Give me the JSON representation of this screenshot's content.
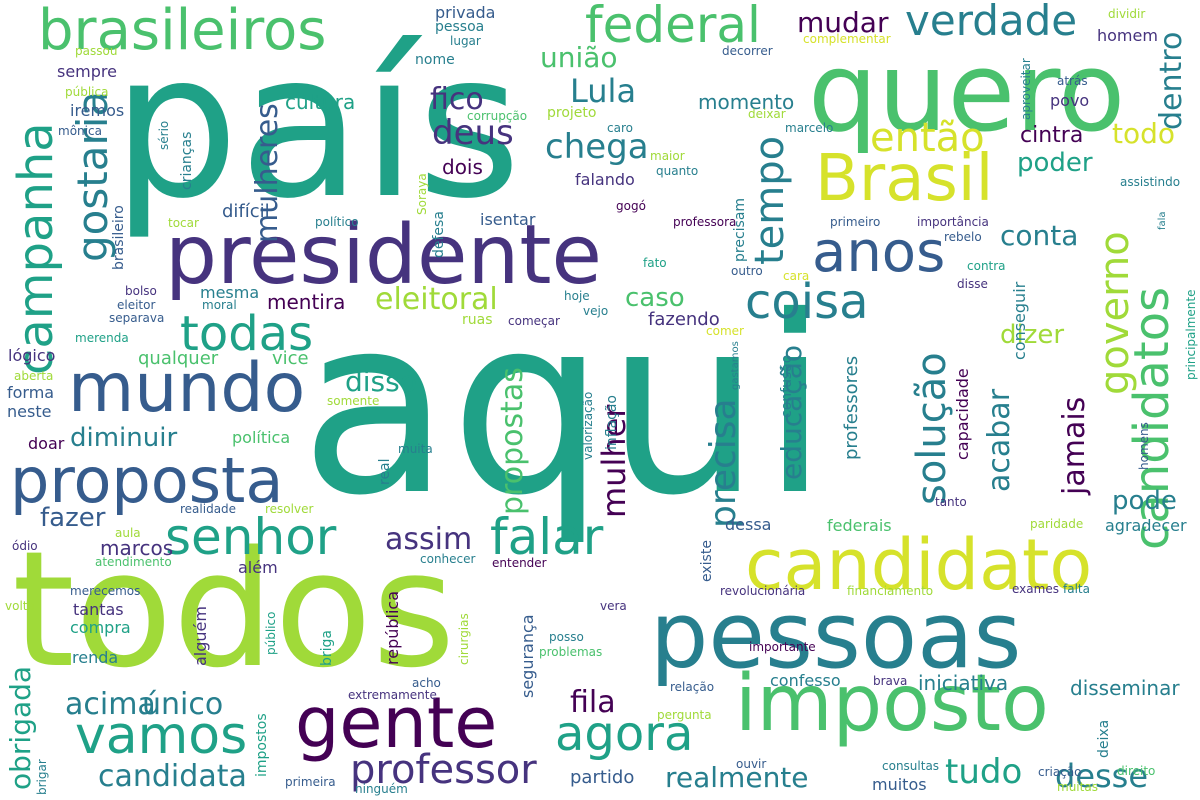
{
  "palette": {
    "c1": "#440154",
    "c2": "#46337e",
    "c3": "#365c8d",
    "c4": "#277f8e",
    "c5": "#1fa187",
    "c6": "#4ac16d",
    "c7": "#a0da39",
    "c8": "#d6e22b"
  },
  "words": {
    "w0": "aqui",
    "w1": "país",
    "w2": "todos",
    "w3": "quero",
    "w4": "pessoas",
    "w5": "presidente",
    "w6": "imposto",
    "w7": "candidato",
    "w8": "gente",
    "w9": "Brasil",
    "w10": "mundo",
    "w11": "proposta",
    "w12": "brasileiros",
    "w13": "federal",
    "w14": "campanha",
    "w15": "candidatos",
    "w16": "verdade",
    "w17": "anos",
    "w18": "coisa",
    "w19": "todas",
    "w20": "vamos",
    "w21": "senhor",
    "w22": "falar",
    "w23": "agora",
    "w24": "professor",
    "w25": "gostaria",
    "w26": "tempo",
    "w27": "governo",
    "w28": "solução",
    "w29": "então",
    "w30": "chega",
    "w31": "deus",
    "w32": "Lula",
    "w33": "fico",
    "w34": "mudar",
    "w35": "dentro",
    "w36": "mulheres",
    "w37": "união",
    "w38": "todo",
    "w39": "cintra",
    "w40": "poder",
    "w41": "precisa",
    "w42": "mulher",
    "w43": "propostas",
    "w44": "educação",
    "w45": "acabar",
    "w46": "jamais",
    "w47": "dizer",
    "w48": "pode",
    "w49": "eleitoral",
    "w50": "caso",
    "w51": "conta",
    "w52": "disso",
    "w53": "diminuir",
    "w54": "fazer",
    "w55": "assim",
    "w56": "fila",
    "w57": "tudo",
    "w58": "desse",
    "w59": "realmente",
    "w60": "candidata",
    "w61": "acima",
    "w62": "único",
    "w63": "obrigada",
    "w64": "marcos",
    "w65": "iniciativa",
    "w66": "disseminar",
    "w67": "momento",
    "w68": "cultura",
    "w69": "mentira",
    "w70": "mesma",
    "w71": "qualquer",
    "w72": "vice",
    "w73": "política",
    "w74": "difícil",
    "w75": "dois",
    "w76": "falando",
    "w77": "privada",
    "w78": "pessoa",
    "w79": "lugar",
    "w80": "nome",
    "w81": "projeto",
    "w82": "corrupção",
    "w83": "caro",
    "w84": "maior",
    "w85": "quanto",
    "w86": "isentar",
    "w87": "defesa",
    "w88": "gogó",
    "w89": "professora",
    "w90": "fato",
    "w91": "hoje",
    "w92": "vejo",
    "w93": "começar",
    "w94": "ruas",
    "w95": "fazendo",
    "w96": "comer",
    "w97": "confusão",
    "w98": "professores",
    "w99": "capacidade",
    "w100": "conseguir",
    "w101": "precisam",
    "w102": "tocar",
    "w103": "político",
    "w104": "sempre",
    "w105": "pública",
    "w106": "mônica",
    "w107": "iremos",
    "w108": "brasileiro",
    "w109": "crianças",
    "w110": "sério",
    "w111": "bolso",
    "w112": "eleitor",
    "w113": "moral",
    "w114": "separava",
    "w115": "merenda",
    "w116": "lógico",
    "w117": "aberta",
    "w118": "forma",
    "w119": "neste",
    "w120": "doar",
    "w121": "somente",
    "w122": "muita",
    "w123": "real",
    "w124": "valorização",
    "w125": "inflação",
    "w126": "gastamos",
    "w127": "homens",
    "w128": "principalmente",
    "w129": "dividir",
    "w130": "homem",
    "w131": "complementar",
    "w132": "passou",
    "w133": "decorrer",
    "w134": "deixar",
    "w135": "marcelo",
    "w136": "atrás",
    "w137": "aproveitar",
    "w138": "povo",
    "w139": "assistindo",
    "w140": "fala",
    "w141": "primeiro",
    "w142": "importância",
    "w143": "rebelo",
    "w144": "outro",
    "w145": "cara",
    "w146": "contra",
    "w147": "disse",
    "w148": "Soraya",
    "w149": "tanto",
    "w150": "paridade",
    "w151": "agradecer",
    "w152": "federais",
    "w153": "dessa",
    "w154": "existe",
    "w155": "revolucionária",
    "w156": "financiamento",
    "w157": "exames",
    "w158": "falta",
    "w159": "importante",
    "w160": "confesso",
    "w161": "brava",
    "w162": "relação",
    "w163": "deixa",
    "w164": "pergunta",
    "w165": "ouvir",
    "w166": "consultas",
    "w167": "muitas",
    "w168": "criação",
    "w169": "direito",
    "w170": "muitos",
    "w171": "partido",
    "w172": "vera",
    "w173": "posso",
    "w174": "problemas",
    "w175": "cirurgias",
    "w176": "acho",
    "w177": "extremamente",
    "w178": "conhecer",
    "w179": "entender",
    "w180": "república",
    "w181": "segurança",
    "w182": "briga",
    "w183": "alguém",
    "w184": "compra",
    "w185": "tantas",
    "w186": "renda",
    "w187": "público",
    "w188": "impostos",
    "w189": "merecemos",
    "w190": "volta",
    "w191": "brigar",
    "w192": "primeira",
    "w193": "ninguém",
    "w194": "ódio",
    "w195": "aula",
    "w196": "atendimento",
    "w197": "realidade",
    "w198": "resolver",
    "w199": "além"
  }
}
